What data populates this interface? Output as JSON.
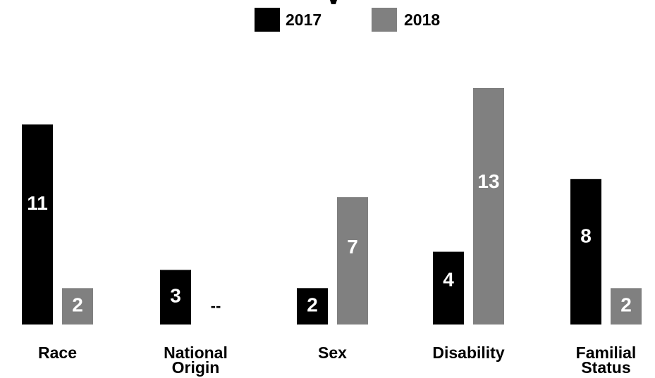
{
  "chart_data": {
    "type": "bar",
    "title": "",
    "categories": [
      "Race",
      "National\nOrigin",
      "Sex",
      "Disability",
      "Familial\nStatus"
    ],
    "series": [
      {
        "name": "2017",
        "color": "#000000",
        "values": [
          11,
          3,
          2,
          4,
          8
        ],
        "labels": [
          "11",
          "3",
          "2",
          "4",
          "8"
        ]
      },
      {
        "name": "2018",
        "color": "#808080",
        "values": [
          2,
          null,
          7,
          13,
          2
        ],
        "labels": [
          "2",
          "--",
          "7",
          "13",
          "2"
        ]
      }
    ],
    "ylim": [
      0,
      13
    ],
    "grid": false,
    "legend": "top-center",
    "xlabel": "",
    "ylabel": ""
  }
}
